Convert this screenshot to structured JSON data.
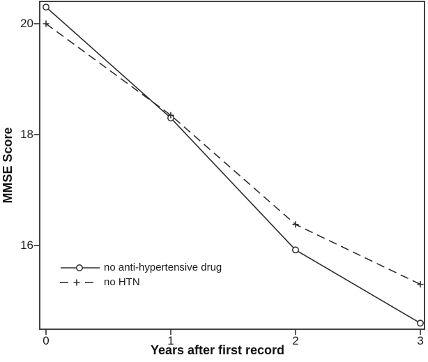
{
  "chart_data": {
    "type": "line",
    "title": "",
    "xlabel": "Years after first record",
    "ylabel": "MMSE Score",
    "xlim": [
      0,
      3
    ],
    "ylim": [
      14.5,
      20.4
    ],
    "grid": false,
    "background_color": "#ffffff",
    "line_color": "#2e2e2e",
    "legend_position": "lower-left-inside",
    "xticks": [
      0,
      1,
      2,
      3
    ],
    "xtick_labels": [
      "0",
      "1",
      "2",
      "3"
    ],
    "yticks": [
      20,
      18,
      16
    ],
    "ytick_labels": [
      "20",
      "18",
      "16"
    ],
    "x": [
      0,
      1,
      2,
      3
    ],
    "series": [
      {
        "name": "no anti-hypertensive drug",
        "line": "solid",
        "marker": "circle",
        "x": [
          0,
          1,
          2,
          3
        ],
        "values": [
          20.3,
          18.3,
          15.92,
          14.6
        ]
      },
      {
        "name": "no HTN",
        "line": "dashed",
        "marker": "plus",
        "x": [
          0,
          1,
          2,
          3
        ],
        "values": [
          20.0,
          18.35,
          16.38,
          15.3
        ]
      }
    ]
  }
}
